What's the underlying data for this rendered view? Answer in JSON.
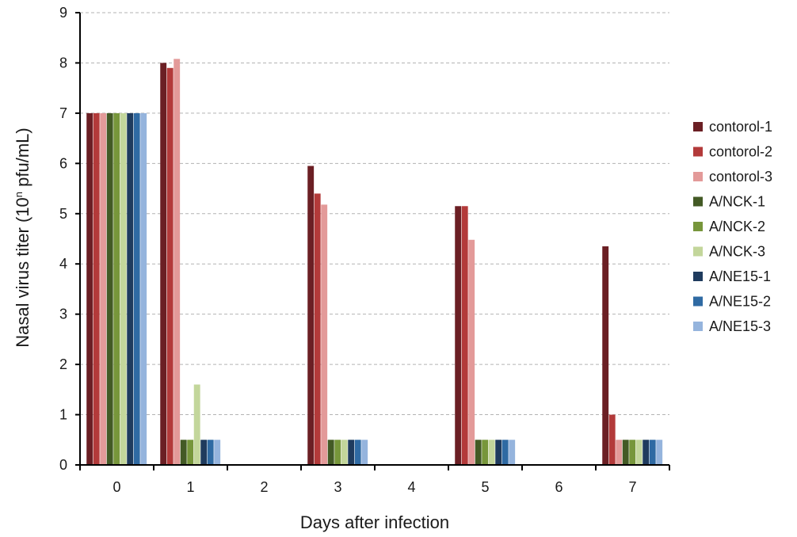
{
  "chart_data": {
    "type": "bar",
    "xlabel": "Days after infection",
    "ylabel_main": "Nasal virus titer (10",
    "ylabel_sup": "n",
    "ylabel_tail": " pfu/mL)",
    "ylim": [
      0,
      9
    ],
    "yticks": [
      "0",
      "1",
      "2",
      "3",
      "4",
      "5",
      "6",
      "7",
      "8",
      "9"
    ],
    "categories": [
      "0",
      "1",
      "2",
      "3",
      "4",
      "5",
      "6",
      "7"
    ],
    "grid": "horizontal dashed",
    "legend_position": "right",
    "series": [
      {
        "name": "contorol-1",
        "color": "#6b1f24",
        "values": [
          7.0,
          8.0,
          null,
          5.95,
          null,
          5.15,
          null,
          4.35
        ]
      },
      {
        "name": "contorol-2",
        "color": "#b33a3a",
        "values": [
          7.0,
          7.9,
          null,
          5.4,
          null,
          5.15,
          null,
          1.0
        ]
      },
      {
        "name": "contorol-3",
        "color": "#e39a99",
        "values": [
          7.0,
          8.08,
          null,
          5.18,
          null,
          4.48,
          null,
          0.5
        ]
      },
      {
        "name": "A/NCK-1",
        "color": "#435a25",
        "values": [
          7.0,
          0.5,
          null,
          0.5,
          null,
          0.5,
          null,
          0.5
        ]
      },
      {
        "name": "A/NCK-2",
        "color": "#77963b",
        "values": [
          7.0,
          0.5,
          null,
          0.5,
          null,
          0.5,
          null,
          0.5
        ]
      },
      {
        "name": "A/NCK-3",
        "color": "#c3d69b",
        "values": [
          7.0,
          1.6,
          null,
          0.5,
          null,
          0.5,
          null,
          0.5
        ]
      },
      {
        "name": "A/NE15-1",
        "color": "#1f3b5e",
        "values": [
          7.0,
          0.5,
          null,
          0.5,
          null,
          0.5,
          null,
          0.5
        ]
      },
      {
        "name": "A/NE15-2",
        "color": "#2f6aa3",
        "values": [
          7.0,
          0.5,
          null,
          0.5,
          null,
          0.5,
          null,
          0.5
        ]
      },
      {
        "name": "A/NE15-3",
        "color": "#95b4dd",
        "values": [
          7.0,
          0.5,
          null,
          0.5,
          null,
          0.5,
          null,
          0.5
        ]
      }
    ]
  }
}
